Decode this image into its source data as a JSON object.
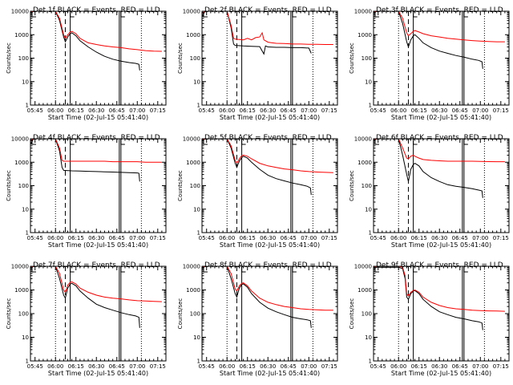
{
  "figure": {
    "background": "#ffffff"
  },
  "common": {
    "xlabel": "Start Time (02-Jul-15 05:41:40)",
    "ylabel": "Counts/sec",
    "x_tick_labels": [
      "05:45",
      "06:00",
      "06:15",
      "06:30",
      "06:45",
      "07:00",
      "07:15"
    ],
    "x_tick_values": [
      5.75,
      6.0,
      6.25,
      6.5,
      6.75,
      7.0,
      7.25
    ],
    "y_tick_labels": [
      "1",
      "10",
      "100",
      "1000",
      "10000"
    ],
    "y_tick_values": [
      1,
      10,
      100,
      1000,
      10000
    ],
    "xlim": [
      5.694,
      7.35
    ],
    "ylim": [
      1,
      10000
    ],
    "colors": {
      "events": "#000000",
      "lld": "#ff0000"
    }
  },
  "chart_data": [
    {
      "type": "line",
      "title": "Det 1f BLACK = Events, RED = LLD",
      "yscale": "log",
      "vlines": {
        "dotted": [
          6.0,
          7.05
        ],
        "dashed": [
          6.12
        ],
        "solid": [
          6.18,
          6.78,
          6.8
        ]
      },
      "series": [
        {
          "color": "#000000",
          "x": [
            5.7,
            5.73,
            5.8,
            5.9,
            6.0,
            6.05,
            6.1,
            6.12,
            6.15,
            6.18,
            6.2,
            6.25,
            6.3,
            6.4,
            6.5,
            6.6,
            6.7,
            6.8,
            6.9,
            6.98,
            7.02,
            7.03
          ],
          "y": [
            8000,
            10000,
            10000,
            10000,
            10000,
            4000,
            800,
            500,
            800,
            1100,
            1200,
            900,
            550,
            300,
            180,
            120,
            90,
            75,
            65,
            60,
            55,
            30
          ]
        },
        {
          "color": "#ff0000",
          "x": [
            5.7,
            5.73,
            5.8,
            5.9,
            6.0,
            6.05,
            6.1,
            6.12,
            6.15,
            6.18,
            6.2,
            6.25,
            6.3,
            6.4,
            6.5,
            6.6,
            6.7,
            6.8,
            6.9,
            7.0,
            7.1,
            7.2,
            7.3
          ],
          "y": [
            9000,
            10000,
            10000,
            10000,
            10000,
            5000,
            1000,
            700,
            1000,
            1300,
            1400,
            1100,
            700,
            450,
            380,
            330,
            300,
            280,
            250,
            230,
            210,
            200,
            195
          ]
        }
      ]
    },
    {
      "type": "line",
      "title": "Det 2f BLACK = Events, RED = LLD",
      "yscale": "log",
      "vlines": {
        "dotted": [
          6.0,
          7.05
        ],
        "dashed": [
          6.12
        ],
        "solid": [
          6.18,
          6.78,
          6.8
        ]
      },
      "series": [
        {
          "color": "#000000",
          "x": [
            5.7,
            5.73,
            5.8,
            5.9,
            6.0,
            6.05,
            6.08,
            6.1,
            6.2,
            6.3,
            6.4,
            6.45,
            6.47,
            6.5,
            6.6,
            6.7,
            6.8,
            6.9,
            7.0,
            7.03
          ],
          "y": [
            6000,
            10000,
            10000,
            10000,
            10000,
            2000,
            400,
            350,
            330,
            320,
            310,
            150,
            330,
            300,
            290,
            290,
            280,
            280,
            270,
            160
          ]
        },
        {
          "color": "#ff0000",
          "x": [
            5.7,
            5.73,
            5.8,
            5.9,
            6.0,
            6.05,
            6.08,
            6.1,
            6.2,
            6.25,
            6.3,
            6.35,
            6.4,
            6.43,
            6.45,
            6.5,
            6.55,
            6.6,
            6.7,
            6.8,
            6.9,
            7.0,
            7.1,
            7.2,
            7.3
          ],
          "y": [
            8000,
            10000,
            10000,
            10000,
            10000,
            2500,
            700,
            650,
            600,
            700,
            600,
            750,
            800,
            1200,
            600,
            480,
            450,
            430,
            420,
            400,
            400,
            390,
            390,
            380,
            380
          ]
        }
      ]
    },
    {
      "type": "line",
      "title": "Det 3f BLACK = Events, RED = LLD",
      "yscale": "log",
      "vlines": {
        "dotted": [
          6.0,
          7.05
        ],
        "dashed": [
          6.12
        ],
        "solid": [
          6.18,
          6.78,
          6.8
        ]
      },
      "series": [
        {
          "color": "#000000",
          "x": [
            5.7,
            5.73,
            5.8,
            5.9,
            6.0,
            6.05,
            6.1,
            6.12,
            6.15,
            6.18,
            6.2,
            6.25,
            6.3,
            6.4,
            6.5,
            6.6,
            6.7,
            6.8,
            6.9,
            6.98,
            7.02,
            7.03
          ],
          "y": [
            8000,
            10000,
            10000,
            10000,
            10000,
            3000,
            500,
            300,
            600,
            900,
            1000,
            700,
            450,
            280,
            200,
            160,
            130,
            110,
            90,
            80,
            70,
            35
          ]
        },
        {
          "color": "#ff0000",
          "x": [
            5.7,
            5.73,
            5.8,
            5.9,
            6.0,
            6.05,
            6.1,
            6.12,
            6.15,
            6.18,
            6.2,
            6.25,
            6.3,
            6.4,
            6.5,
            6.6,
            6.7,
            6.8,
            6.9,
            7.0,
            7.1,
            7.2,
            7.3
          ],
          "y": [
            9000,
            10000,
            10000,
            10000,
            10000,
            5000,
            1200,
            900,
            1100,
            1400,
            1500,
            1300,
            1100,
            900,
            800,
            700,
            650,
            600,
            560,
            530,
            510,
            500,
            500
          ]
        }
      ]
    },
    {
      "type": "line",
      "title": "Det 4f BLACK = Events, RED = LLD",
      "yscale": "log",
      "vlines": {
        "dotted": [
          6.0,
          7.05
        ],
        "dashed": [
          6.12
        ],
        "solid": [
          6.18,
          6.78,
          6.8
        ]
      },
      "series": [
        {
          "color": "#000000",
          "x": [
            5.7,
            5.73,
            5.8,
            5.9,
            6.0,
            6.05,
            6.08,
            6.1,
            6.2,
            6.3,
            6.4,
            6.5,
            6.6,
            6.7,
            6.8,
            6.9,
            7.0,
            7.02,
            7.03
          ],
          "y": [
            6000,
            10000,
            10000,
            10000,
            10000,
            3000,
            600,
            450,
            430,
            420,
            410,
            400,
            390,
            380,
            370,
            360,
            350,
            340,
            150
          ]
        },
        {
          "color": "#ff0000",
          "x": [
            5.7,
            5.73,
            5.8,
            5.9,
            6.0,
            6.05,
            6.08,
            6.1,
            6.2,
            6.3,
            6.4,
            6.5,
            6.6,
            6.7,
            6.8,
            6.9,
            7.0,
            7.1,
            7.2,
            7.3
          ],
          "y": [
            8000,
            10000,
            10000,
            10000,
            10000,
            4000,
            1200,
            1100,
            1100,
            1100,
            1100,
            1100,
            1100,
            1050,
            1050,
            1050,
            1050,
            1000,
            1000,
            1000
          ]
        }
      ]
    },
    {
      "type": "line",
      "title": "Det 5f BLACK = Events, RED = LLD",
      "yscale": "log",
      "vlines": {
        "dotted": [
          6.0,
          7.05
        ],
        "dashed": [
          6.12
        ],
        "solid": [
          6.18,
          6.78,
          6.8
        ]
      },
      "series": [
        {
          "color": "#000000",
          "x": [
            5.7,
            5.73,
            5.8,
            5.9,
            6.0,
            6.05,
            6.1,
            6.12,
            6.15,
            6.18,
            6.2,
            6.25,
            6.3,
            6.4,
            6.5,
            6.6,
            6.7,
            6.8,
            6.9,
            6.98,
            7.02,
            7.03
          ],
          "y": [
            8000,
            10000,
            10000,
            10000,
            10000,
            4000,
            900,
            600,
            1100,
            1600,
            1800,
            1500,
            1000,
            500,
            280,
            200,
            160,
            130,
            110,
            95,
            80,
            40
          ]
        },
        {
          "color": "#ff0000",
          "x": [
            5.7,
            5.73,
            5.8,
            5.9,
            6.0,
            6.05,
            6.1,
            6.12,
            6.15,
            6.18,
            6.2,
            6.25,
            6.3,
            6.4,
            6.5,
            6.6,
            6.7,
            6.8,
            6.9,
            7.0,
            7.1,
            7.2,
            7.3
          ],
          "y": [
            9000,
            10000,
            10000,
            10000,
            10000,
            5000,
            1200,
            900,
            1400,
            1900,
            2000,
            1800,
            1400,
            900,
            700,
            600,
            520,
            480,
            430,
            400,
            380,
            370,
            360
          ]
        }
      ]
    },
    {
      "type": "line",
      "title": "Det 6f BLACK = Events, RED = LLD",
      "yscale": "log",
      "vlines": {
        "dotted": [
          6.0,
          7.05
        ],
        "dashed": [
          6.12
        ],
        "solid": [
          6.18,
          6.78,
          6.8
        ]
      },
      "series": [
        {
          "color": "#000000",
          "x": [
            5.7,
            5.73,
            5.8,
            5.9,
            6.0,
            6.05,
            6.1,
            6.12,
            6.15,
            6.18,
            6.2,
            6.25,
            6.3,
            6.4,
            6.5,
            6.6,
            6.7,
            6.8,
            6.9,
            6.98,
            7.02,
            7.03
          ],
          "y": [
            8000,
            10000,
            10000,
            10000,
            10000,
            2000,
            300,
            150,
            500,
            800,
            900,
            700,
            400,
            220,
            150,
            110,
            95,
            85,
            75,
            65,
            60,
            30
          ]
        },
        {
          "color": "#ff0000",
          "x": [
            5.7,
            5.73,
            5.8,
            5.9,
            6.0,
            6.05,
            6.1,
            6.12,
            6.15,
            6.18,
            6.2,
            6.25,
            6.3,
            6.4,
            6.5,
            6.6,
            6.7,
            6.8,
            6.9,
            7.0,
            7.1,
            7.2,
            7.3
          ],
          "y": [
            9000,
            10000,
            10000,
            10000,
            10000,
            4000,
            1500,
            1400,
            1800,
            2000,
            1800,
            1500,
            1300,
            1200,
            1150,
            1100,
            1100,
            1100,
            1100,
            1080,
            1060,
            1050,
            1050
          ]
        }
      ]
    },
    {
      "type": "line",
      "title": "Det 7f BLACK = Events, RED = LLD",
      "yscale": "log",
      "vlines": {
        "dotted": [
          6.0,
          7.05
        ],
        "dashed": [
          6.12
        ],
        "solid": [
          6.18,
          6.78,
          6.8
        ]
      },
      "series": [
        {
          "color": "#000000",
          "x": [
            5.7,
            5.73,
            5.8,
            5.9,
            6.0,
            6.05,
            6.1,
            6.12,
            6.15,
            6.18,
            6.2,
            6.25,
            6.3,
            6.4,
            6.5,
            6.6,
            6.7,
            6.8,
            6.9,
            6.98,
            7.02,
            7.03
          ],
          "y": [
            8000,
            10000,
            10000,
            10000,
            10000,
            3000,
            600,
            450,
            1200,
            1800,
            1900,
            1500,
            900,
            450,
            250,
            180,
            140,
            110,
            90,
            80,
            70,
            25
          ]
        },
        {
          "color": "#ff0000",
          "x": [
            5.7,
            5.73,
            5.8,
            5.9,
            6.0,
            6.05,
            6.1,
            6.12,
            6.15,
            6.18,
            6.2,
            6.25,
            6.3,
            6.4,
            6.5,
            6.6,
            6.7,
            6.8,
            6.9,
            7.0,
            7.1,
            7.2,
            7.3
          ],
          "y": [
            9000,
            10000,
            10000,
            10000,
            10000,
            5000,
            1000,
            800,
            1600,
            2100,
            2200,
            1800,
            1200,
            800,
            600,
            500,
            450,
            420,
            380,
            350,
            340,
            330,
            320
          ]
        }
      ]
    },
    {
      "type": "line",
      "title": "Det 8f BLACK = Events, RED = LLD",
      "yscale": "log",
      "vlines": {
        "dotted": [
          6.0,
          7.05
        ],
        "dashed": [
          6.12
        ],
        "solid": [
          6.18,
          6.78,
          6.8
        ]
      },
      "series": [
        {
          "color": "#000000",
          "x": [
            5.7,
            5.73,
            5.8,
            5.9,
            6.0,
            6.05,
            6.1,
            6.12,
            6.15,
            6.18,
            6.2,
            6.25,
            6.3,
            6.4,
            6.5,
            6.6,
            6.7,
            6.8,
            6.9,
            6.98,
            7.02,
            7.03
          ],
          "y": [
            8000,
            10000,
            10000,
            10000,
            10000,
            3000,
            700,
            500,
            1200,
            1700,
            1800,
            1300,
            700,
            300,
            170,
            120,
            90,
            70,
            60,
            55,
            50,
            25
          ]
        },
        {
          "color": "#ff0000",
          "x": [
            5.7,
            5.73,
            5.8,
            5.9,
            6.0,
            6.05,
            6.1,
            6.12,
            6.15,
            6.18,
            6.2,
            6.25,
            6.3,
            6.4,
            6.5,
            6.6,
            6.7,
            6.8,
            6.9,
            7.0,
            7.1,
            7.2,
            7.3
          ],
          "y": [
            9000,
            10000,
            10000,
            10000,
            10000,
            5000,
            1100,
            900,
            1500,
            1900,
            2000,
            1500,
            900,
            450,
            300,
            240,
            200,
            180,
            160,
            150,
            145,
            140,
            140
          ]
        }
      ]
    },
    {
      "type": "line",
      "title": "Det 9f BLACK = Events, RED = LLD",
      "yscale": "log",
      "vlines": {
        "dotted": [
          6.0,
          7.05
        ],
        "dashed": [
          6.12
        ],
        "solid": [
          6.18,
          6.78,
          6.8
        ]
      },
      "series": [
        {
          "color": "#000000",
          "x": [
            5.7,
            5.73,
            5.8,
            5.9,
            6.0,
            6.05,
            6.08,
            6.1,
            6.12,
            6.15,
            6.18,
            6.2,
            6.25,
            6.3,
            6.4,
            6.5,
            6.6,
            6.7,
            6.8,
            6.9,
            6.98,
            7.02,
            7.03
          ],
          "y": [
            8000,
            9000,
            9000,
            9000,
            9000,
            8000,
            3000,
            500,
            400,
            700,
            900,
            950,
            700,
            400,
            200,
            120,
            90,
            70,
            60,
            50,
            45,
            40,
            20
          ]
        },
        {
          "color": "#ff0000",
          "x": [
            5.7,
            5.73,
            5.8,
            5.9,
            6.0,
            6.05,
            6.08,
            6.1,
            6.12,
            6.15,
            6.18,
            6.2,
            6.25,
            6.3,
            6.4,
            6.5,
            6.6,
            6.7,
            6.8,
            6.9,
            7.0,
            7.1,
            7.2,
            7.3
          ],
          "y": [
            9000,
            10000,
            10000,
            10000,
            10000,
            9000,
            4000,
            700,
            550,
            800,
            950,
            1000,
            800,
            500,
            300,
            220,
            180,
            160,
            150,
            140,
            135,
            130,
            128,
            125
          ]
        }
      ]
    }
  ]
}
